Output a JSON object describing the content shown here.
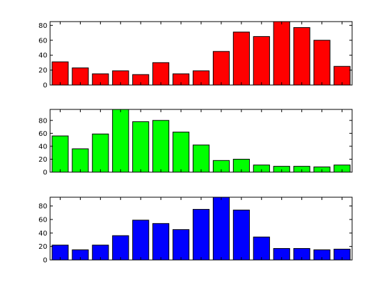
{
  "chart_data": [
    {
      "type": "bar",
      "title": "",
      "xlabel": "",
      "ylabel": "",
      "color": "#ff0000",
      "x": [
        1,
        2,
        3,
        4,
        5,
        6,
        7,
        8,
        9,
        10,
        11,
        12,
        13,
        14,
        15
      ],
      "values": [
        31,
        23,
        15,
        19,
        14,
        30,
        15,
        19,
        45,
        71,
        65,
        85,
        77,
        60,
        25
      ],
      "ylim": [
        0,
        85
      ],
      "yticks": [
        0,
        20,
        40,
        60,
        80
      ],
      "grid": false
    },
    {
      "type": "bar",
      "title": "",
      "xlabel": "",
      "ylabel": "",
      "color": "#00ff00",
      "x": [
        1,
        2,
        3,
        4,
        5,
        6,
        7,
        8,
        9,
        10,
        11,
        12,
        13,
        14,
        15
      ],
      "values": [
        56,
        36,
        59,
        97,
        78,
        80,
        62,
        42,
        18,
        20,
        11,
        9,
        9,
        8,
        11
      ],
      "ylim": [
        0,
        97
      ],
      "yticks": [
        0,
        20,
        40,
        60,
        80
      ],
      "grid": false
    },
    {
      "type": "bar",
      "title": "",
      "xlabel": "",
      "ylabel": "",
      "color": "#0000ff",
      "x": [
        1,
        2,
        3,
        4,
        5,
        6,
        7,
        8,
        9,
        10,
        11,
        12,
        13,
        14,
        15
      ],
      "values": [
        22,
        15,
        22,
        36,
        59,
        54,
        45,
        75,
        93,
        74,
        34,
        17,
        17,
        15,
        16
      ],
      "ylim": [
        0,
        93
      ],
      "yticks": [
        0,
        20,
        40,
        60,
        80
      ],
      "grid": false
    }
  ]
}
